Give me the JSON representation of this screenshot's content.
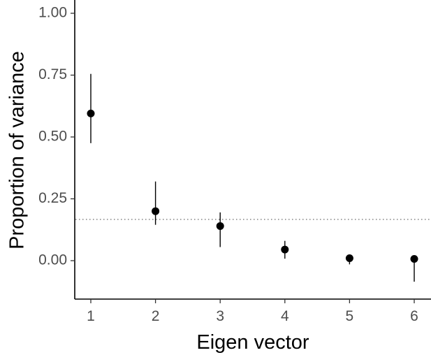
{
  "chart_data": {
    "type": "scatter",
    "xlabel": "Eigen vector",
    "ylabel": "Proportion of variance",
    "x_ticks": [
      "1",
      "2",
      "3",
      "4",
      "5",
      "6"
    ],
    "y_ticks": [
      "0.00",
      "0.25",
      "0.50",
      "0.75",
      "1.00"
    ],
    "xlim": [
      0.8,
      6.25
    ],
    "ylim": [
      -0.15,
      1.0
    ],
    "grid": false,
    "legend": "none",
    "series": [
      {
        "x": [
          1,
          2,
          3,
          4,
          5,
          6
        ],
        "values": [
          0.595,
          0.2,
          0.14,
          0.045,
          0.01,
          0.007
        ],
        "error_low": [
          0.475,
          0.145,
          0.055,
          0.008,
          -0.015,
          -0.085
        ],
        "error_high": [
          0.755,
          0.32,
          0.195,
          0.08,
          0.025,
          0.01
        ]
      }
    ],
    "reference_line": {
      "y": 0.1667,
      "style": "dotted"
    }
  }
}
